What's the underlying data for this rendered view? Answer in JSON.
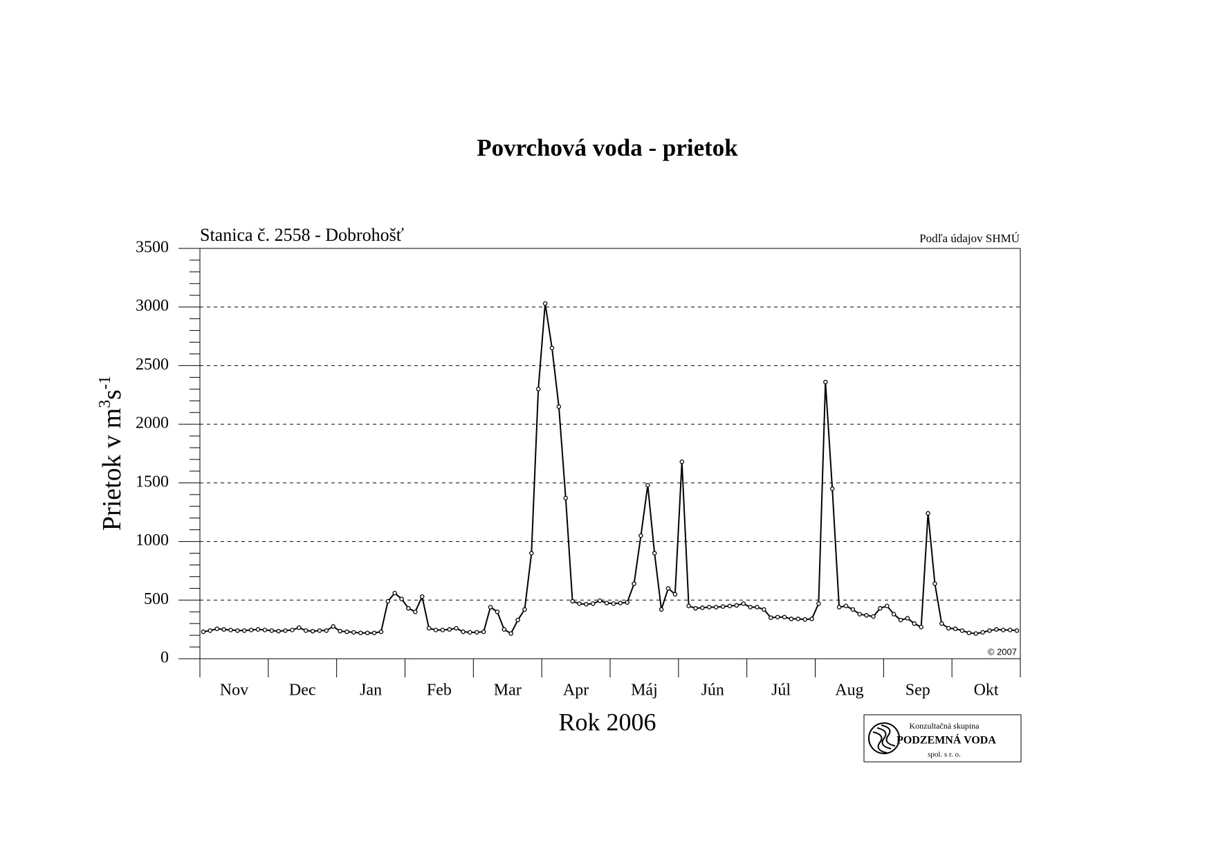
{
  "chart_data": {
    "type": "line",
    "title": "Povrchová voda - prietok",
    "subtitle": "Stanica č. 2558 - Dobrohošť",
    "source": "Podľa údajov SHMÚ",
    "copyright": "© 2007",
    "ylabel_parts": [
      "Prietok v m",
      "3",
      "s",
      "-1"
    ],
    "xlabel": "Rok 2006",
    "categories": [
      "Nov",
      "Dec",
      "Jan",
      "Feb",
      "Mar",
      "Apr",
      "Máj",
      "Jún",
      "Júl",
      "Aug",
      "Sep",
      "Okt"
    ],
    "values": [
      [
        230,
        240,
        255,
        250,
        245,
        240,
        240,
        245,
        250,
        245
      ],
      [
        240,
        235,
        240,
        245,
        265,
        240,
        235,
        240,
        240,
        275
      ],
      [
        235,
        230,
        225,
        220,
        220,
        220,
        230,
        490,
        560,
        510
      ],
      [
        430,
        400,
        530,
        260,
        245,
        245,
        250,
        260,
        230,
        225
      ],
      [
        225,
        230,
        440,
        400,
        250,
        215,
        330,
        420,
        900,
        2300
      ],
      [
        3030,
        2650,
        2150,
        1370,
        490,
        470,
        465,
        470,
        495,
        475
      ],
      [
        470,
        475,
        480,
        640,
        1050,
        1480,
        900,
        420,
        600,
        550
      ],
      [
        1680,
        450,
        430,
        435,
        440,
        440,
        445,
        450,
        455,
        470
      ],
      [
        440,
        440,
        420,
        350,
        355,
        355,
        340,
        340,
        335,
        340
      ],
      [
        470,
        2360,
        1450,
        440,
        450,
        420,
        380,
        370,
        360,
        430
      ],
      [
        450,
        380,
        330,
        345,
        300,
        270,
        1240,
        640,
        300,
        260
      ],
      [
        255,
        240,
        220,
        215,
        225,
        240,
        250,
        245,
        245,
        240
      ]
    ],
    "color": "#000000",
    "ylim": [
      0,
      3500
    ],
    "yticks": [
      0,
      500,
      1000,
      1500,
      2000,
      2500,
      3000,
      3500
    ],
    "grid": true,
    "logo": {
      "line1": "Konzultačná skupina",
      "line2": "PODZEMNÁ VODA",
      "line3": "spol. s r. o."
    }
  }
}
